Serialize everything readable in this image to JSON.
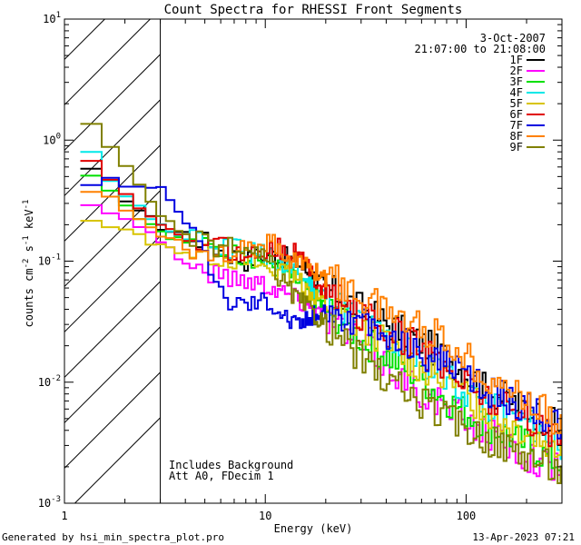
{
  "chart_data": {
    "type": "line",
    "title": "Count Spectra for RHESSI Front Segments",
    "xlabel": "Energy (keV)",
    "ylabel_parts": [
      "counts cm",
      "-2",
      " s",
      "-1",
      " keV",
      "-1"
    ],
    "xscale": "log",
    "yscale": "log",
    "xlim": [
      1,
      300
    ],
    "ylim": [
      0.001,
      10
    ],
    "x_tick_labels": [
      {
        "v": 1,
        "text": "1"
      },
      {
        "v": 10,
        "text": "10"
      },
      {
        "v": 100,
        "text": "100"
      }
    ],
    "y_tick_labels": [
      {
        "v": 0.001,
        "base": "10",
        "exp": "-3"
      },
      {
        "v": 0.01,
        "base": "10",
        "exp": "-2"
      },
      {
        "v": 0.1,
        "base": "10",
        "exp": "-1"
      },
      {
        "v": 1,
        "base": "10",
        "exp": "0"
      },
      {
        "v": 10,
        "base": "10",
        "exp": "1"
      }
    ],
    "hatch_region_xmax": 3,
    "date": "3-Oct-2007",
    "time_range": "21:07:00 to 21:08:00",
    "annotations": [
      "Includes Background",
      "Att A0, FDecim 1"
    ],
    "series": [
      {
        "name": "1F",
        "color": "#000000",
        "points": [
          [
            1.2,
            0.55
          ],
          [
            1.5,
            0.45
          ],
          [
            2,
            0.3
          ],
          [
            3,
            0.18
          ],
          [
            4,
            0.17
          ],
          [
            6,
            0.12
          ],
          [
            8,
            0.1
          ],
          [
            10,
            0.12
          ],
          [
            14,
            0.1
          ],
          [
            20,
            0.06
          ],
          [
            30,
            0.04
          ],
          [
            50,
            0.025
          ],
          [
            80,
            0.016
          ],
          [
            120,
            0.009
          ],
          [
            200,
            0.006
          ],
          [
            300,
            0.004
          ]
        ]
      },
      {
        "name": "2F",
        "color": "#ff00ff",
        "points": [
          [
            1.2,
            0.28
          ],
          [
            1.5,
            0.27
          ],
          [
            2,
            0.22
          ],
          [
            3,
            0.14
          ],
          [
            4,
            0.09
          ],
          [
            6,
            0.075
          ],
          [
            8,
            0.07
          ],
          [
            10,
            0.065
          ],
          [
            14,
            0.05
          ],
          [
            20,
            0.035
          ],
          [
            30,
            0.02
          ],
          [
            50,
            0.01
          ],
          [
            80,
            0.006
          ],
          [
            120,
            0.004
          ],
          [
            200,
            0.0025
          ],
          [
            300,
            0.0018
          ]
        ]
      },
      {
        "name": "3F",
        "color": "#00e000",
        "points": [
          [
            1.2,
            0.5
          ],
          [
            1.5,
            0.42
          ],
          [
            2,
            0.26
          ],
          [
            3,
            0.17
          ],
          [
            4,
            0.14
          ],
          [
            6,
            0.12
          ],
          [
            8,
            0.11
          ],
          [
            10,
            0.1
          ],
          [
            14,
            0.07
          ],
          [
            20,
            0.04
          ],
          [
            30,
            0.022
          ],
          [
            50,
            0.013
          ],
          [
            80,
            0.007
          ],
          [
            120,
            0.0045
          ],
          [
            200,
            0.003
          ],
          [
            300,
            0.002
          ]
        ]
      },
      {
        "name": "4F",
        "color": "#00e8e8",
        "points": [
          [
            1.2,
            0.8
          ],
          [
            1.5,
            0.5
          ],
          [
            2,
            0.3
          ],
          [
            3,
            0.19
          ],
          [
            4,
            0.15
          ],
          [
            6,
            0.13
          ],
          [
            8,
            0.12
          ],
          [
            10,
            0.11
          ],
          [
            14,
            0.08
          ],
          [
            20,
            0.05
          ],
          [
            30,
            0.03
          ],
          [
            50,
            0.018
          ],
          [
            80,
            0.011
          ],
          [
            120,
            0.007
          ],
          [
            200,
            0.0045
          ],
          [
            300,
            0.003
          ]
        ]
      },
      {
        "name": "5F",
        "color": "#d8c400",
        "points": [
          [
            1.2,
            0.22
          ],
          [
            1.5,
            0.2
          ],
          [
            2,
            0.17
          ],
          [
            3,
            0.13
          ],
          [
            4,
            0.12
          ],
          [
            6,
            0.11
          ],
          [
            8,
            0.1
          ],
          [
            10,
            0.09
          ],
          [
            14,
            0.07
          ],
          [
            20,
            0.045
          ],
          [
            30,
            0.028
          ],
          [
            50,
            0.016
          ],
          [
            80,
            0.01
          ],
          [
            120,
            0.006
          ],
          [
            200,
            0.004
          ],
          [
            300,
            0.0028
          ]
        ]
      },
      {
        "name": "6F",
        "color": "#e00000",
        "points": [
          [
            1.2,
            0.7
          ],
          [
            1.5,
            0.5
          ],
          [
            2,
            0.3
          ],
          [
            3,
            0.18
          ],
          [
            4,
            0.15
          ],
          [
            6,
            0.13
          ],
          [
            8,
            0.11
          ],
          [
            10,
            0.13
          ],
          [
            14,
            0.12
          ],
          [
            20,
            0.055
          ],
          [
            30,
            0.035
          ],
          [
            50,
            0.022
          ],
          [
            80,
            0.013
          ],
          [
            120,
            0.008
          ],
          [
            200,
            0.005
          ],
          [
            300,
            0.0035
          ]
        ]
      },
      {
        "name": "7F",
        "color": "#0000e0",
        "points": [
          [
            1.2,
            0.45
          ],
          [
            1.5,
            0.5
          ],
          [
            2,
            0.42
          ],
          [
            3,
            0.38
          ],
          [
            4,
            0.2
          ],
          [
            6,
            0.05
          ],
          [
            8,
            0.045
          ],
          [
            10,
            0.05
          ],
          [
            14,
            0.03
          ],
          [
            20,
            0.04
          ],
          [
            30,
            0.03
          ],
          [
            50,
            0.02
          ],
          [
            80,
            0.014
          ],
          [
            120,
            0.009
          ],
          [
            200,
            0.006
          ],
          [
            300,
            0.004
          ]
        ]
      },
      {
        "name": "8F",
        "color": "#ff8000",
        "points": [
          [
            1.2,
            0.35
          ],
          [
            1.5,
            0.35
          ],
          [
            2,
            0.25
          ],
          [
            3,
            0.16
          ],
          [
            4,
            0.13
          ],
          [
            6,
            0.12
          ],
          [
            8,
            0.12
          ],
          [
            10,
            0.15
          ],
          [
            14,
            0.1
          ],
          [
            20,
            0.075
          ],
          [
            30,
            0.05
          ],
          [
            50,
            0.033
          ],
          [
            80,
            0.022
          ],
          [
            120,
            0.012
          ],
          [
            200,
            0.007
          ],
          [
            300,
            0.0045
          ]
        ]
      },
      {
        "name": "9F",
        "color": "#808000",
        "points": [
          [
            1.2,
            1.3
          ],
          [
            1.5,
            0.9
          ],
          [
            2,
            0.55
          ],
          [
            3,
            0.22
          ],
          [
            4,
            0.15
          ],
          [
            6,
            0.13
          ],
          [
            8,
            0.12
          ],
          [
            10,
            0.1
          ],
          [
            14,
            0.05
          ],
          [
            20,
            0.03
          ],
          [
            30,
            0.015
          ],
          [
            50,
            0.008
          ],
          [
            80,
            0.005
          ],
          [
            120,
            0.0035
          ],
          [
            200,
            0.0025
          ],
          [
            300,
            0.0018
          ]
        ]
      }
    ]
  },
  "footer": {
    "generated_by": "Generated by hsi_min_spectra_plot.pro",
    "timestamp": "13-Apr-2023 07:21"
  }
}
